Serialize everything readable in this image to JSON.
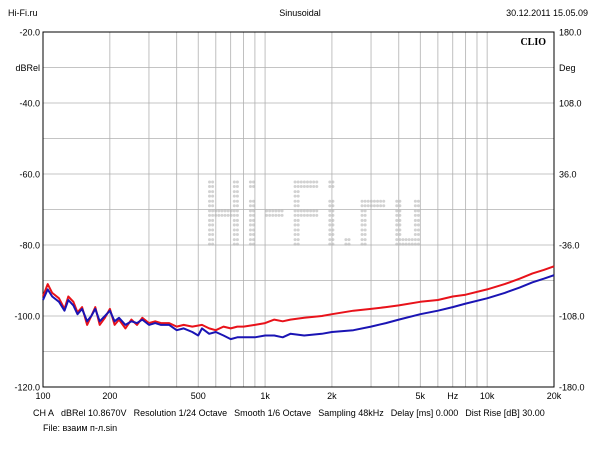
{
  "header": {
    "site": "Hi-Fi.ru",
    "signal": "Sinusoidal",
    "datetime": "30.12.2011 15.05.09"
  },
  "chart_data": {
    "type": "line",
    "brand": "CLIO",
    "watermark": "Hi-Fi.ru",
    "x_scale": "log",
    "xlim": [
      100,
      20000
    ],
    "x_ticks": [
      {
        "value": 100,
        "label": "100"
      },
      {
        "value": 200,
        "label": "200"
      },
      {
        "value": 500,
        "label": "500"
      },
      {
        "value": 1000,
        "label": "1k"
      },
      {
        "value": 2000,
        "label": "2k"
      },
      {
        "value": 5000,
        "label": "5k"
      },
      {
        "value": 7000,
        "label": "Hz"
      },
      {
        "value": 10000,
        "label": "10k"
      },
      {
        "value": 20000,
        "label": "20k"
      }
    ],
    "left_axis": {
      "unit": "dBRel",
      "ylim": [
        -120,
        -20
      ],
      "ticks": [
        -20,
        -40,
        -60,
        -80,
        -100,
        -120
      ],
      "tick_labels": [
        "-20.0",
        "-40.0",
        "-60.0",
        "-80.0",
        "-100.0",
        "-120.0"
      ]
    },
    "right_axis": {
      "unit": "Deg",
      "ylim": [
        -180,
        180
      ],
      "ticks": [
        180,
        108,
        36,
        -36,
        -108,
        -180
      ],
      "tick_labels": [
        "180.0",
        "108.0",
        "36.0",
        "-36.0",
        "-108.0",
        "-180.0"
      ]
    },
    "grid": true,
    "legend": "none",
    "series": [
      {
        "color": "#e8121a",
        "points": [
          [
            100,
            -94.5
          ],
          [
            105,
            -91.0
          ],
          [
            110,
            -93.5
          ],
          [
            118,
            -95.0
          ],
          [
            125,
            -98.0
          ],
          [
            130,
            -94.5
          ],
          [
            137,
            -96.0
          ],
          [
            143,
            -99.0
          ],
          [
            150,
            -97.5
          ],
          [
            158,
            -102.5
          ],
          [
            165,
            -100.0
          ],
          [
            172,
            -97.5
          ],
          [
            180,
            -102.5
          ],
          [
            190,
            -100.5
          ],
          [
            200,
            -98.0
          ],
          [
            210,
            -102.5
          ],
          [
            220,
            -101.0
          ],
          [
            235,
            -103.5
          ],
          [
            250,
            -101.0
          ],
          [
            265,
            -102.5
          ],
          [
            280,
            -100.5
          ],
          [
            300,
            -102.0
          ],
          [
            320,
            -101.5
          ],
          [
            340,
            -102.0
          ],
          [
            370,
            -102.0
          ],
          [
            400,
            -103.0
          ],
          [
            430,
            -102.5
          ],
          [
            470,
            -103.0
          ],
          [
            520,
            -102.5
          ],
          [
            560,
            -103.5
          ],
          [
            600,
            -104.0
          ],
          [
            650,
            -103.0
          ],
          [
            700,
            -103.5
          ],
          [
            750,
            -103.0
          ],
          [
            800,
            -103.0
          ],
          [
            900,
            -102.5
          ],
          [
            1000,
            -102.0
          ],
          [
            1100,
            -101.0
          ],
          [
            1200,
            -101.5
          ],
          [
            1300,
            -101.0
          ],
          [
            1500,
            -100.5
          ],
          [
            1800,
            -100.0
          ],
          [
            2000,
            -99.5
          ],
          [
            2500,
            -98.5
          ],
          [
            3000,
            -98.0
          ],
          [
            3500,
            -97.5
          ],
          [
            4000,
            -97.0
          ],
          [
            5000,
            -96.0
          ],
          [
            6000,
            -95.5
          ],
          [
            7000,
            -94.5
          ],
          [
            8000,
            -94.0
          ],
          [
            10000,
            -92.5
          ],
          [
            12000,
            -91.0
          ],
          [
            14000,
            -89.5
          ],
          [
            16000,
            -88.0
          ],
          [
            18000,
            -87.0
          ],
          [
            20000,
            -86.0
          ]
        ]
      },
      {
        "color": "#1a14b4",
        "points": [
          [
            100,
            -95.5
          ],
          [
            105,
            -92.5
          ],
          [
            110,
            -94.5
          ],
          [
            118,
            -96.0
          ],
          [
            125,
            -98.5
          ],
          [
            130,
            -95.5
          ],
          [
            137,
            -97.0
          ],
          [
            143,
            -99.5
          ],
          [
            150,
            -98.0
          ],
          [
            158,
            -101.5
          ],
          [
            165,
            -100.0
          ],
          [
            172,
            -98.0
          ],
          [
            180,
            -101.5
          ],
          [
            190,
            -100.0
          ],
          [
            200,
            -98.5
          ],
          [
            210,
            -101.5
          ],
          [
            220,
            -100.5
          ],
          [
            235,
            -102.5
          ],
          [
            250,
            -101.5
          ],
          [
            265,
            -102.0
          ],
          [
            280,
            -101.0
          ],
          [
            300,
            -102.5
          ],
          [
            320,
            -102.0
          ],
          [
            340,
            -102.5
          ],
          [
            370,
            -102.5
          ],
          [
            400,
            -104.0
          ],
          [
            430,
            -103.5
          ],
          [
            470,
            -104.5
          ],
          [
            500,
            -105.5
          ],
          [
            520,
            -103.5
          ],
          [
            560,
            -105.0
          ],
          [
            600,
            -104.5
          ],
          [
            650,
            -105.5
          ],
          [
            700,
            -106.5
          ],
          [
            750,
            -106.0
          ],
          [
            800,
            -106.0
          ],
          [
            900,
            -106.0
          ],
          [
            1000,
            -105.5
          ],
          [
            1100,
            -105.5
          ],
          [
            1200,
            -106.0
          ],
          [
            1300,
            -105.0
          ],
          [
            1500,
            -105.5
          ],
          [
            1800,
            -105.0
          ],
          [
            2000,
            -104.5
          ],
          [
            2500,
            -104.0
          ],
          [
            3000,
            -103.0
          ],
          [
            3500,
            -102.0
          ],
          [
            4000,
            -101.0
          ],
          [
            5000,
            -99.5
          ],
          [
            6000,
            -98.5
          ],
          [
            7000,
            -97.5
          ],
          [
            8000,
            -96.5
          ],
          [
            10000,
            -95.0
          ],
          [
            12000,
            -93.5
          ],
          [
            14000,
            -92.0
          ],
          [
            16000,
            -90.5
          ],
          [
            18000,
            -89.5
          ],
          [
            20000,
            -88.5
          ]
        ]
      }
    ]
  },
  "footer": {
    "line1": [
      "CH A",
      "dBRel 10.8670V",
      "Resolution 1/24 Octave",
      "Smooth 1/6 Octave",
      "Sampling 48kHz",
      "Delay [ms] 0.000",
      "Dist Rise [dB] 30.00"
    ],
    "file": "File: взаим п-л.sin"
  },
  "colors": {
    "red_series": "#e8121a",
    "blue_series": "#1a14b4",
    "grid": "#b0b0b0",
    "watermark": "#d2d2d2"
  }
}
